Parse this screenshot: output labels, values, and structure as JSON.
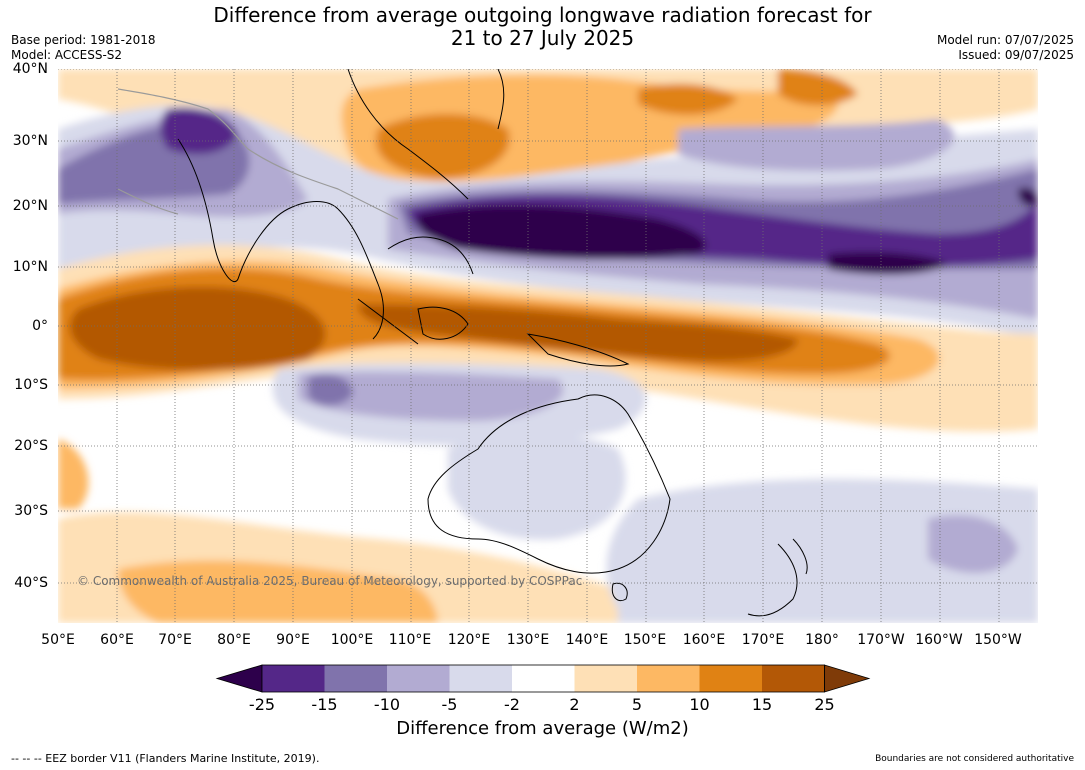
{
  "title_line1": "Difference from average outgoing longwave radiation forecast for",
  "title_line2": "21 to 27 July 2025",
  "base_period": "Base period: 1981-2018",
  "model": "Model: ACCESS-S2",
  "model_run": "Model run: 07/07/2025",
  "issued": "Issued: 09/07/2025",
  "lat_labels": [
    "40°N",
    "30°N",
    "20°N",
    "10°N",
    "0°",
    "10°S",
    "20°S",
    "30°S",
    "40°S"
  ],
  "lon_labels": [
    "50°E",
    "60°E",
    "70°E",
    "80°E",
    "90°E",
    "100°E",
    "110°E",
    "120°E",
    "130°E",
    "140°E",
    "150°E",
    "160°E",
    "170°E",
    "180°",
    "170°W",
    "160°W",
    "150°W"
  ],
  "copyright": "© Commonwealth of Australia 2025, Bureau of Meteorology, supported by COSPPac",
  "colorbar": {
    "ticks": [
      "-25",
      "-15",
      "-10",
      "-5",
      "-2",
      "2",
      "5",
      "10",
      "15",
      "25"
    ],
    "colors": [
      "#2d004b",
      "#542788",
      "#8073ac",
      "#b2abd2",
      "#d8daeb",
      "#ffffff",
      "#fee0b6",
      "#fdb863",
      "#e08214",
      "#b35806",
      "#7f3b08"
    ],
    "title": "Difference from average (W/m2)"
  },
  "footer_left": "--  --  -- EEZ border V11 (Flanders Marine Institute, 2019).",
  "footer_right": "Boundaries are not considered authoritative"
}
